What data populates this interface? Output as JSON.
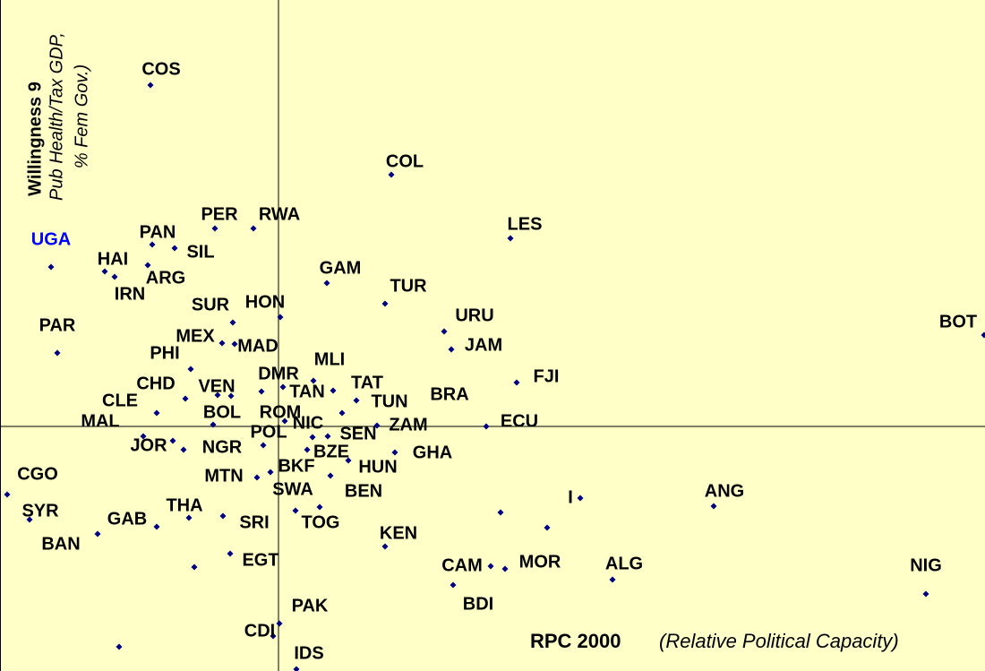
{
  "chart_data": {
    "type": "scatter",
    "y_title": "Willingness 9",
    "y_subtitle": [
      "Pub Health/Tax GDP,",
      "% Fem Gov.)"
    ],
    "x_title": "RPC 2000",
    "x_subtitle": "(Relative Political Capacity)",
    "xlim": [
      -3.11,
      7.89
    ],
    "ylim": [
      -2.73,
      4.76
    ],
    "color": "#000080",
    "background": "#ffffc8",
    "highlight": {
      "index": 7,
      "color": "#0000ff"
    },
    "labels": [
      "COS",
      "COL",
      "LES",
      "PER",
      "RWA",
      "PAN",
      "SIL",
      "UGA",
      "HAI",
      "IRN",
      "ARG",
      "GAM",
      "TUR",
      "SUR",
      "HON",
      "PAR",
      "URU",
      "JAM",
      "BOT",
      "MEX",
      "MAD",
      "PHI",
      "MLI",
      "DMR",
      "TAT",
      "FJI",
      "TAN",
      "CHD",
      "VEN",
      null,
      "BRA",
      "TUN",
      "CLE",
      "MAL",
      "BOL",
      "ROM",
      "NIC",
      "ZAM",
      "ECU",
      "SEN",
      "POL",
      "JOR",
      "NGR",
      "BZE",
      "GHA",
      "BKF",
      "HUN",
      "CGO",
      "MTN",
      "SWA",
      "BEN",
      "SYR",
      "THA",
      "GAB",
      "SRI",
      "TOG",
      "BAN",
      null,
      "I",
      "ANG",
      "KEN",
      "EGT",
      "CAM",
      "MOR",
      "ALG",
      "NIG",
      "BDI",
      "PAK",
      "CDI",
      "IDS",
      null,
      null,
      null
    ],
    "x": [
      -1.43,
      1.26,
      2.59,
      -0.71,
      -0.28,
      -1.41,
      -1.16,
      -2.54,
      -1.94,
      -1.83,
      -1.46,
      0.54,
      1.19,
      -0.51,
      0.02,
      -2.47,
      1.85,
      1.93,
      7.88,
      -0.63,
      -0.49,
      -0.98,
      0.39,
      -0.19,
      0.61,
      2.66,
      0.05,
      -1.04,
      -0.68,
      -0.53,
      0.87,
      0.71,
      -1.36,
      -1.51,
      -0.73,
      0.07,
      0.38,
      1.1,
      2.32,
      0.55,
      -0.17,
      -1.18,
      -1.06,
      0.32,
      1.3,
      -0.09,
      0.78,
      -3.03,
      -0.24,
      0.58,
      0.46,
      -2.78,
      -1.0,
      -1.36,
      -0.62,
      0.19,
      -2.02,
      -0.94,
      3.37,
      4.86,
      1.19,
      -0.54,
      2.37,
      2.53,
      3.73,
      7.23,
      1.95,
      0.01,
      -0.06,
      0.2,
      -1.78,
      2.48,
      3.0
    ],
    "values": [
      3.81,
      2.81,
      2.1,
      2.21,
      2.21,
      2.03,
      1.99,
      1.78,
      1.73,
      1.67,
      1.8,
      1.6,
      1.37,
      1.16,
      1.22,
      0.82,
      1.06,
      0.86,
      1.02,
      0.93,
      0.92,
      0.64,
      0.51,
      0.39,
      0.4,
      0.49,
      0.44,
      0.31,
      0.35,
      0.34,
      0.29,
      0.15,
      0.15,
      -0.11,
      0.02,
      0.06,
      -0.12,
      0.01,
      0.0,
      -0.11,
      -0.21,
      -0.16,
      -0.26,
      -0.26,
      -0.29,
      -0.51,
      -0.38,
      -0.76,
      -0.57,
      -0.55,
      -0.9,
      -1.04,
      -1.02,
      -1.12,
      -1.0,
      -0.94,
      -1.2,
      -1.57,
      -0.8,
      -0.89,
      -1.34,
      -1.42,
      -1.56,
      -1.59,
      -1.71,
      -1.87,
      -1.77,
      -2.2,
      -2.34,
      -2.71,
      -2.46,
      -0.96,
      -1.13
    ]
  }
}
